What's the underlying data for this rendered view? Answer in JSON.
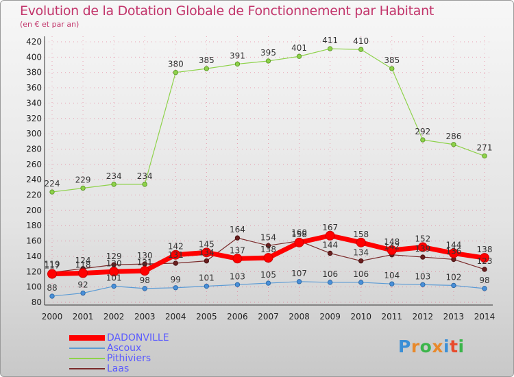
{
  "header": {
    "title": "Evolution de la Dotation Globale de Fonctionnement par Habitant",
    "subtitle": "(en € et par an)"
  },
  "logo": {
    "text": "Proxiti"
  },
  "colors": {
    "title": "#c2356b",
    "legend_text": "#5a5aff",
    "grid": "#e45c7e",
    "DADONVILLE": "#ff0000",
    "Ascoux": "#5b9bd5",
    "Pithiviers": "#8ed24a",
    "Laas": "#7b2b2b"
  },
  "chart_data": {
    "type": "line",
    "x": [
      "2000",
      "2001",
      "2002",
      "2003",
      "2004",
      "2005",
      "2006",
      "2007",
      "2008",
      "2009",
      "2010",
      "2011",
      "2012",
      "2013",
      "2014"
    ],
    "ylim": [
      80,
      420
    ],
    "yticks": [
      80,
      100,
      120,
      140,
      160,
      180,
      200,
      220,
      240,
      260,
      280,
      300,
      320,
      340,
      360,
      380,
      400,
      420
    ],
    "grid": true,
    "legend_position": "bottom-left",
    "series": [
      {
        "name": "DADONVILLE",
        "values": [
          117,
          118,
          120,
          121,
          142,
          145,
          137,
          138,
          158,
          167,
          158,
          148,
          152,
          144,
          138
        ]
      },
      {
        "name": "Ascoux",
        "values": [
          88,
          92,
          101,
          98,
          99,
          101,
          103,
          105,
          107,
          106,
          106,
          104,
          103,
          102,
          98
        ]
      },
      {
        "name": "Pithiviers",
        "values": [
          224,
          229,
          234,
          234,
          380,
          385,
          391,
          395,
          401,
          411,
          410,
          385,
          292,
          286,
          271
        ]
      },
      {
        "name": "Laas",
        "values": [
          119,
          124,
          129,
          130,
          131,
          134,
          164,
          154,
          160,
          144,
          134,
          142,
          139,
          136,
          123
        ]
      }
    ]
  }
}
